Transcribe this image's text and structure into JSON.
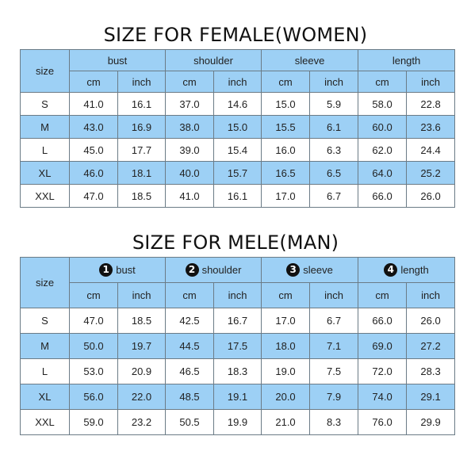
{
  "female": {
    "title": "SIZE FOR FEMALE(WOMEN)",
    "size_label": "size",
    "groups": [
      "bust",
      "shoulder",
      "sleeve",
      "length"
    ],
    "units": [
      "cm",
      "inch"
    ],
    "rows": [
      [
        "S",
        "41.0",
        "16.1",
        "37.0",
        "14.6",
        "15.0",
        "5.9",
        "58.0",
        "22.8"
      ],
      [
        "M",
        "43.0",
        "16.9",
        "38.0",
        "15.0",
        "15.5",
        "6.1",
        "60.0",
        "23.6"
      ],
      [
        "L",
        "45.0",
        "17.7",
        "39.0",
        "15.4",
        "16.0",
        "6.3",
        "62.0",
        "24.4"
      ],
      [
        "XL",
        "46.0",
        "18.1",
        "40.0",
        "15.7",
        "16.5",
        "6.5",
        "64.0",
        "25.2"
      ],
      [
        "XXL",
        "47.0",
        "18.5",
        "41.0",
        "16.1",
        "17.0",
        "6.7",
        "66.0",
        "26.0"
      ]
    ]
  },
  "male": {
    "title": "SIZE FOR MELE(MAN)",
    "size_label": "size",
    "groups": [
      "bust",
      "shoulder",
      "sleeve",
      "length"
    ],
    "group_numbers": [
      "1",
      "2",
      "3",
      "4"
    ],
    "units": [
      "cm",
      "inch"
    ],
    "rows": [
      [
        "S",
        "47.0",
        "18.5",
        "42.5",
        "16.7",
        "17.0",
        "6.7",
        "66.0",
        "26.0"
      ],
      [
        "M",
        "50.0",
        "19.7",
        "44.5",
        "17.5",
        "18.0",
        "7.1",
        "69.0",
        "27.2"
      ],
      [
        "L",
        "53.0",
        "20.9",
        "46.5",
        "18.3",
        "19.0",
        "7.5",
        "72.0",
        "28.3"
      ],
      [
        "XL",
        "56.0",
        "22.0",
        "48.5",
        "19.1",
        "20.0",
        "7.9",
        "74.0",
        "29.1"
      ],
      [
        "XXL",
        "59.0",
        "23.2",
        "50.5",
        "19.9",
        "21.0",
        "8.3",
        "76.0",
        "29.9"
      ]
    ]
  },
  "colors": {
    "header_fill": "#9dd0f5",
    "alt_row_fill": "#9dd0f5",
    "row_fill": "#ffffff",
    "border": "#6b7b86"
  }
}
